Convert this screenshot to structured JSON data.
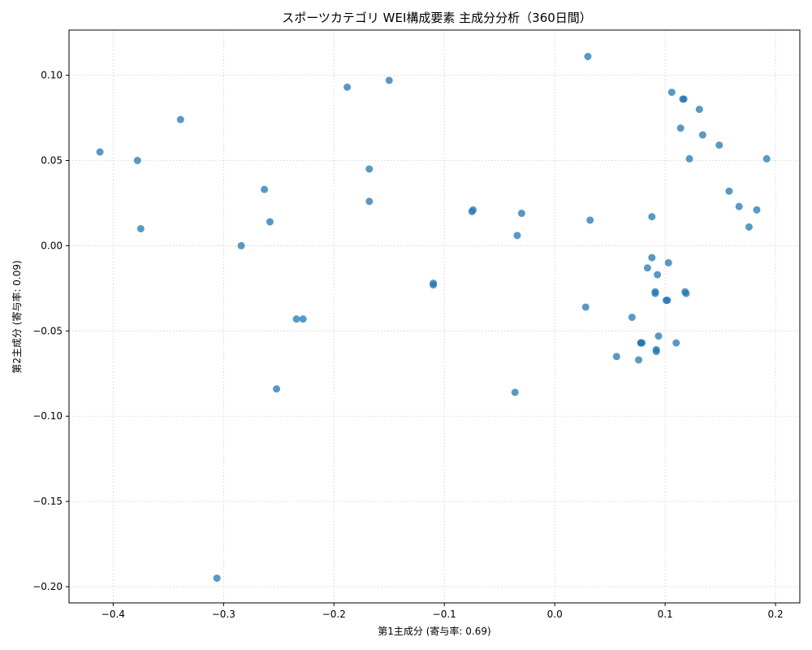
{
  "chart_data": {
    "type": "scatter",
    "title": "スポーツカテゴリ WEI構成要素 主成分分析（360日間）",
    "xlabel": "第1主成分 (寄与率: 0.69)",
    "ylabel": "第2主成分 (寄与率: 0.09)",
    "xlim": [
      -0.44,
      0.222
    ],
    "ylim": [
      -0.2095,
      0.1265
    ],
    "xticks": [
      -0.4,
      -0.3,
      -0.2,
      -0.1,
      0.0,
      0.1,
      0.2
    ],
    "yticks": [
      -0.2,
      -0.15,
      -0.1,
      -0.05,
      0.0,
      0.05,
      0.1
    ],
    "xtick_labels": [
      "−0.4",
      "−0.3",
      "−0.2",
      "−0.1",
      "0.0",
      "0.1",
      "0.2"
    ],
    "ytick_labels": [
      "−0.20",
      "−0.15",
      "−0.10",
      "−0.05",
      "0.00",
      "0.05",
      "0.10"
    ],
    "grid": true,
    "color": "#1f77b4",
    "points": [
      {
        "x": -0.412,
        "y": 0.055
      },
      {
        "x": -0.378,
        "y": 0.05
      },
      {
        "x": -0.375,
        "y": 0.01
      },
      {
        "x": -0.339,
        "y": 0.074
      },
      {
        "x": -0.306,
        "y": -0.195
      },
      {
        "x": -0.284,
        "y": 0.0
      },
      {
        "x": -0.263,
        "y": 0.033
      },
      {
        "x": -0.258,
        "y": 0.014
      },
      {
        "x": -0.252,
        "y": -0.084
      },
      {
        "x": -0.234,
        "y": -0.043
      },
      {
        "x": -0.228,
        "y": -0.043
      },
      {
        "x": -0.188,
        "y": 0.093
      },
      {
        "x": -0.168,
        "y": 0.045
      },
      {
        "x": -0.168,
        "y": 0.026
      },
      {
        "x": -0.15,
        "y": 0.097
      },
      {
        "x": -0.11,
        "y": -0.023
      },
      {
        "x": -0.11,
        "y": -0.022
      },
      {
        "x": -0.075,
        "y": 0.02
      },
      {
        "x": -0.074,
        "y": 0.021
      },
      {
        "x": -0.036,
        "y": -0.086
      },
      {
        "x": -0.034,
        "y": 0.006
      },
      {
        "x": -0.03,
        "y": 0.019
      },
      {
        "x": 0.028,
        "y": -0.036
      },
      {
        "x": 0.03,
        "y": 0.111
      },
      {
        "x": 0.032,
        "y": 0.015
      },
      {
        "x": 0.056,
        "y": -0.065
      },
      {
        "x": 0.07,
        "y": -0.042
      },
      {
        "x": 0.076,
        "y": -0.067
      },
      {
        "x": 0.078,
        "y": -0.057
      },
      {
        "x": 0.078,
        "y": -0.057
      },
      {
        "x": 0.079,
        "y": -0.057
      },
      {
        "x": 0.084,
        "y": -0.013
      },
      {
        "x": 0.088,
        "y": 0.017
      },
      {
        "x": 0.088,
        "y": -0.007
      },
      {
        "x": 0.091,
        "y": -0.028
      },
      {
        "x": 0.091,
        "y": -0.027
      },
      {
        "x": 0.092,
        "y": -0.061
      },
      {
        "x": 0.092,
        "y": -0.062
      },
      {
        "x": 0.093,
        "y": -0.017
      },
      {
        "x": 0.094,
        "y": -0.053
      },
      {
        "x": 0.101,
        "y": -0.032
      },
      {
        "x": 0.102,
        "y": -0.032
      },
      {
        "x": 0.103,
        "y": -0.01
      },
      {
        "x": 0.106,
        "y": 0.09
      },
      {
        "x": 0.11,
        "y": -0.057
      },
      {
        "x": 0.114,
        "y": 0.069
      },
      {
        "x": 0.116,
        "y": 0.086
      },
      {
        "x": 0.117,
        "y": 0.086
      },
      {
        "x": 0.118,
        "y": -0.027
      },
      {
        "x": 0.119,
        "y": -0.028
      },
      {
        "x": 0.122,
        "y": 0.051
      },
      {
        "x": 0.131,
        "y": 0.08
      },
      {
        "x": 0.134,
        "y": 0.065
      },
      {
        "x": 0.149,
        "y": 0.059
      },
      {
        "x": 0.158,
        "y": 0.032
      },
      {
        "x": 0.167,
        "y": 0.023
      },
      {
        "x": 0.176,
        "y": 0.011
      },
      {
        "x": 0.183,
        "y": 0.021
      },
      {
        "x": 0.192,
        "y": 0.051
      }
    ]
  }
}
